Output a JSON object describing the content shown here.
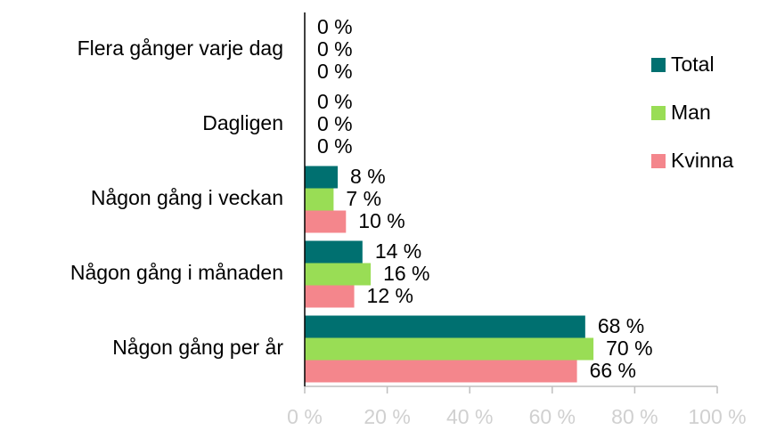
{
  "chart_data": {
    "type": "hbar",
    "categories": [
      "Flera gånger varje dag",
      "Dagligen",
      "Någon gång i veckan",
      "Någon gång i månaden",
      "Någon gång per år"
    ],
    "series": [
      {
        "name": "Total",
        "color": "#007070",
        "values": [
          0,
          0,
          8,
          14,
          68
        ],
        "value_labels": [
          "0 %",
          "0 %",
          "8 %",
          "14 %",
          "68 %"
        ]
      },
      {
        "name": "Man",
        "color": "#99dd55",
        "values": [
          0,
          0,
          7,
          16,
          70
        ],
        "value_labels": [
          "0 %",
          "0 %",
          "7 %",
          "16 %",
          "70 %"
        ]
      },
      {
        "name": "Kvinna",
        "color": "#f4868c",
        "values": [
          0,
          0,
          10,
          12,
          66
        ],
        "value_labels": [
          "0 %",
          "0 %",
          "10 %",
          "12 %",
          "66 %"
        ]
      }
    ],
    "xlim": [
      0,
      100
    ],
    "xticks": [
      {
        "value": 0,
        "label": "0 %"
      },
      {
        "value": 20,
        "label": "20 %"
      },
      {
        "value": 40,
        "label": "40 %"
      },
      {
        "value": 60,
        "label": "60 %"
      },
      {
        "value": 80,
        "label": "80 %"
      },
      {
        "value": 100,
        "label": "100 %"
      }
    ],
    "legend": "right"
  }
}
